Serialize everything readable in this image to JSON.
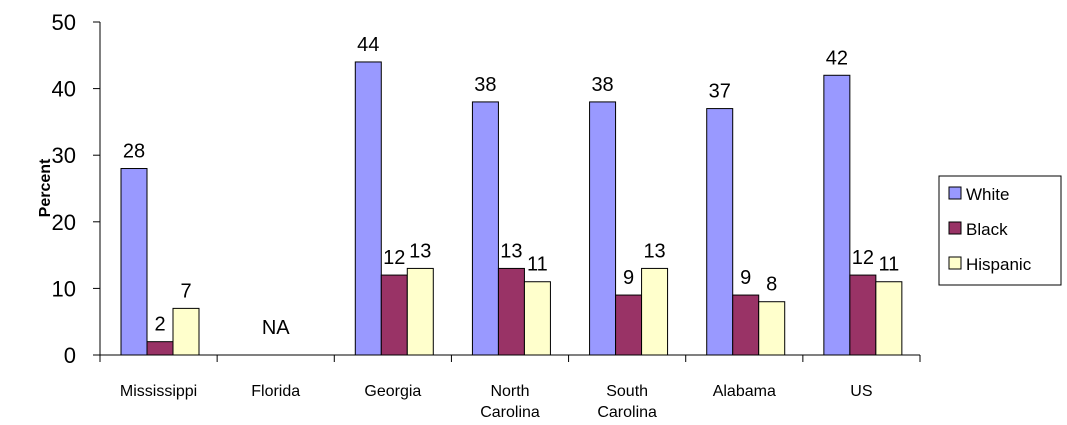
{
  "chart_data": {
    "type": "bar",
    "ylabel": "Percent",
    "ylim": [
      0,
      50
    ],
    "yticks": [
      0,
      10,
      20,
      30,
      40,
      50
    ],
    "categories": [
      [
        "Mississippi"
      ],
      [
        "Florida"
      ],
      [
        "Georgia"
      ],
      [
        "North",
        "Carolina"
      ],
      [
        "South",
        "Carolina"
      ],
      [
        "Alabama"
      ],
      [
        "US"
      ]
    ],
    "series": [
      {
        "name": "White",
        "color": "#9999ff",
        "values": [
          28,
          null,
          44,
          38,
          38,
          37,
          42
        ]
      },
      {
        "name": "Black",
        "color": "#993366",
        "values": [
          2,
          null,
          12,
          13,
          9,
          9,
          12
        ]
      },
      {
        "name": "Hispanic",
        "color": "#ffffcc",
        "values": [
          7,
          null,
          13,
          11,
          13,
          8,
          11
        ]
      }
    ],
    "annotations": [
      {
        "category_index": 1,
        "text": "NA"
      }
    ],
    "legend": "right",
    "grid": false
  }
}
